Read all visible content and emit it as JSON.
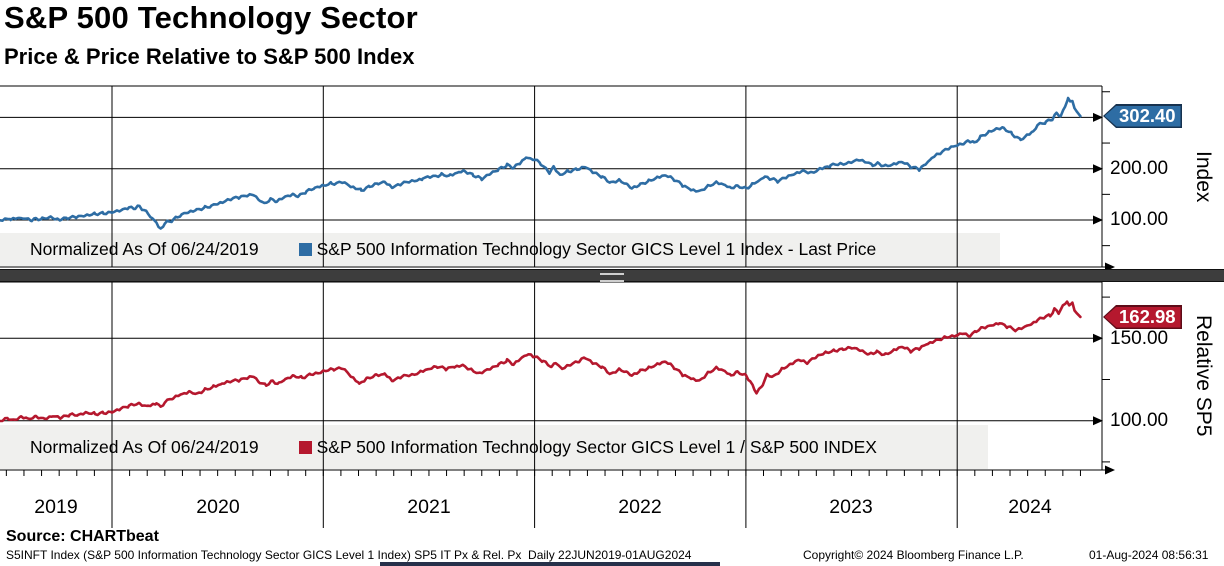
{
  "header": {
    "title": "S&P 500 Technology Sector",
    "subtitle": "Price & Price Relative to S&P 500 Index"
  },
  "panels": {
    "price": {
      "legend_prefix": "Normalized As Of 06/24/2019",
      "legend_series": "S&P 500 Information Technology Sector GICS Level 1 Index - Last Price",
      "last_value": "302.40",
      "axis_title": "Index",
      "tick_200": "200.00",
      "tick_100": "100.00"
    },
    "relative": {
      "legend_prefix": "Normalized As Of 06/24/2019",
      "legend_series": "S&P 500 Information Technology Sector GICS Level 1 / S&P 500 INDEX",
      "last_value": "162.98",
      "axis_title": "Relative SP5",
      "tick_150": "150.00",
      "tick_100": "100.00"
    }
  },
  "x_axis": {
    "labels": [
      "2019",
      "2020",
      "2021",
      "2022",
      "2023",
      "2024"
    ],
    "gridline_years": [
      2020,
      2021,
      2022,
      2023,
      2024
    ],
    "range": [
      "22JUN2019",
      "01AUG2024"
    ]
  },
  "footer": {
    "source": "Source: CHARTbeat",
    "description": "S5INFT Index (S&P 500 Information Technology Sector GICS Level 1 Index) SP5 IT Px & Rel. Px  Daily 22JUN2019-01AUG2024",
    "copyright": "Copyright© 2024 Bloomberg Finance L.P.",
    "timestamp": "01-Aug-2024 08:56:31"
  },
  "colors": {
    "price_line": "#2e6da4",
    "price_flag_fill": "#2e6da4",
    "price_flag_border": "#17324f",
    "relative_line": "#b5182e",
    "relative_flag_fill": "#b5182e",
    "relative_flag_border": "#5e0c18",
    "grid": "#000000",
    "legend_band": "#f0f0ee"
  },
  "chart_data": [
    {
      "type": "line",
      "name": "S&P 500 Information Technology Sector GICS Level 1 Index - Last Price",
      "normalized_as_of": "06/24/2019",
      "last": 302.4,
      "gridline_values": [
        100,
        200,
        300
      ],
      "minor_tick_values": [
        50,
        150,
        250,
        350
      ],
      "ylim": [
        20,
        360
      ],
      "points": [
        [
          2019.47,
          100
        ],
        [
          2019.52,
          102
        ],
        [
          2019.56,
          104.5
        ],
        [
          2019.58,
          103
        ],
        [
          2019.62,
          99.5
        ],
        [
          2019.64,
          102.5
        ],
        [
          2019.67,
          101
        ],
        [
          2019.71,
          104
        ],
        [
          2019.73,
          102.5
        ],
        [
          2019.76,
          101.5
        ],
        [
          2019.79,
          104.5
        ],
        [
          2019.83,
          107
        ],
        [
          2019.87,
          109
        ],
        [
          2019.92,
          112
        ],
        [
          2019.96,
          114
        ],
        [
          2020.0,
          116.5
        ],
        [
          2020.05,
          121
        ],
        [
          2020.08,
          124
        ],
        [
          2020.11,
          122
        ],
        [
          2020.13,
          126.8
        ],
        [
          2020.15,
          120
        ],
        [
          2020.17,
          112
        ],
        [
          2020.19,
          104
        ],
        [
          2020.21,
          95
        ],
        [
          2020.22,
          87
        ],
        [
          2020.23,
          83.5
        ],
        [
          2020.25,
          93
        ],
        [
          2020.27,
          97
        ],
        [
          2020.29,
          101
        ],
        [
          2020.31,
          105
        ],
        [
          2020.33,
          111
        ],
        [
          2020.36,
          116
        ],
        [
          2020.4,
          121
        ],
        [
          2020.44,
          125
        ],
        [
          2020.47,
          127
        ],
        [
          2020.5,
          133
        ],
        [
          2020.55,
          139
        ],
        [
          2020.6,
          144
        ],
        [
          2020.64,
          148
        ],
        [
          2020.67,
          151
        ],
        [
          2020.7,
          138
        ],
        [
          2020.72,
          132
        ],
        [
          2020.75,
          140
        ],
        [
          2020.78,
          136
        ],
        [
          2020.82,
          145
        ],
        [
          2020.86,
          149
        ],
        [
          2020.88,
          146
        ],
        [
          2020.92,
          155
        ],
        [
          2020.96,
          161
        ],
        [
          2021.0,
          166
        ],
        [
          2021.04,
          171
        ],
        [
          2021.09,
          174
        ],
        [
          2021.13,
          165
        ],
        [
          2021.18,
          157
        ],
        [
          2021.22,
          166
        ],
        [
          2021.26,
          172
        ],
        [
          2021.29,
          174
        ],
        [
          2021.33,
          163
        ],
        [
          2021.37,
          170
        ],
        [
          2021.42,
          175
        ],
        [
          2021.47,
          181
        ],
        [
          2021.52,
          186
        ],
        [
          2021.56,
          189
        ],
        [
          2021.6,
          186
        ],
        [
          2021.64,
          192
        ],
        [
          2021.67,
          194
        ],
        [
          2021.71,
          187
        ],
        [
          2021.75,
          181
        ],
        [
          2021.79,
          192
        ],
        [
          2021.83,
          200
        ],
        [
          2021.87,
          207
        ],
        [
          2021.9,
          201
        ],
        [
          2021.93,
          212
        ],
        [
          2021.96,
          223
        ],
        [
          2021.98,
          219
        ],
        [
          2022.0,
          218
        ],
        [
          2022.03,
          210
        ],
        [
          2022.07,
          193
        ],
        [
          2022.09,
          203
        ],
        [
          2022.12,
          187
        ],
        [
          2022.16,
          195
        ],
        [
          2022.2,
          200
        ],
        [
          2022.24,
          205
        ],
        [
          2022.28,
          193
        ],
        [
          2022.32,
          184
        ],
        [
          2022.36,
          172
        ],
        [
          2022.4,
          177
        ],
        [
          2022.44,
          168
        ],
        [
          2022.46,
          162
        ],
        [
          2022.5,
          170
        ],
        [
          2022.54,
          176
        ],
        [
          2022.58,
          182
        ],
        [
          2022.62,
          186
        ],
        [
          2022.66,
          178
        ],
        [
          2022.7,
          168
        ],
        [
          2022.74,
          160
        ],
        [
          2022.78,
          157
        ],
        [
          2022.82,
          166
        ],
        [
          2022.86,
          173
        ],
        [
          2022.9,
          168
        ],
        [
          2022.93,
          161
        ],
        [
          2022.96,
          166
        ],
        [
          2023.0,
          162
        ],
        [
          2023.03,
          168
        ],
        [
          2023.06,
          175
        ],
        [
          2023.09,
          185
        ],
        [
          2023.12,
          180
        ],
        [
          2023.15,
          176
        ],
        [
          2023.19,
          184
        ],
        [
          2023.23,
          190
        ],
        [
          2023.27,
          196
        ],
        [
          2023.31,
          192
        ],
        [
          2023.35,
          200
        ],
        [
          2023.4,
          207
        ],
        [
          2023.45,
          210
        ],
        [
          2023.5,
          214
        ],
        [
          2023.54,
          218
        ],
        [
          2023.57,
          212
        ],
        [
          2023.6,
          206
        ],
        [
          2023.63,
          210
        ],
        [
          2023.66,
          205
        ],
        [
          2023.7,
          208
        ],
        [
          2023.74,
          212
        ],
        [
          2023.78,
          203
        ],
        [
          2023.82,
          199
        ],
        [
          2023.85,
          210
        ],
        [
          2023.88,
          220
        ],
        [
          2023.92,
          230
        ],
        [
          2023.96,
          240
        ],
        [
          2024.0,
          246
        ],
        [
          2024.03,
          250
        ],
        [
          2024.05,
          254
        ],
        [
          2024.08,
          250
        ],
        [
          2024.11,
          261
        ],
        [
          2024.15,
          270
        ],
        [
          2024.19,
          277
        ],
        [
          2024.22,
          279
        ],
        [
          2024.26,
          268
        ],
        [
          2024.3,
          258
        ],
        [
          2024.33,
          265
        ],
        [
          2024.36,
          272
        ],
        [
          2024.38,
          285
        ],
        [
          2024.42,
          290
        ],
        [
          2024.45,
          296
        ],
        [
          2024.47,
          308
        ],
        [
          2024.49,
          303
        ],
        [
          2024.51,
          320
        ],
        [
          2024.525,
          337
        ],
        [
          2024.535,
          329
        ],
        [
          2024.545,
          333
        ],
        [
          2024.555,
          320
        ],
        [
          2024.565,
          311
        ],
        [
          2024.575,
          305
        ],
        [
          2024.583,
          302.4
        ]
      ]
    },
    {
      "type": "line",
      "name": "S&P 500 Information Technology Sector GICS Level 1 / S&P 500 INDEX",
      "normalized_as_of": "06/24/2019",
      "last": 162.98,
      "gridline_values": [
        100,
        150
      ],
      "minor_tick_values": [
        75,
        125,
        175
      ],
      "ylim": [
        70,
        185
      ],
      "points": [
        [
          2019.47,
          100
        ],
        [
          2019.51,
          101.5
        ],
        [
          2019.54,
          100.2
        ],
        [
          2019.57,
          102
        ],
        [
          2019.6,
          101
        ],
        [
          2019.64,
          102.5
        ],
        [
          2019.68,
          101.2
        ],
        [
          2019.72,
          103
        ],
        [
          2019.76,
          102
        ],
        [
          2019.8,
          103.5
        ],
        [
          2019.84,
          103
        ],
        [
          2019.88,
          104.5
        ],
        [
          2019.92,
          104
        ],
        [
          2019.96,
          105
        ],
        [
          2020.0,
          105.7
        ],
        [
          2020.04,
          107.5
        ],
        [
          2020.08,
          109
        ],
        [
          2020.13,
          110.5
        ],
        [
          2020.17,
          109
        ],
        [
          2020.21,
          110.5
        ],
        [
          2020.23,
          108.5
        ],
        [
          2020.25,
          111
        ],
        [
          2020.29,
          113.5
        ],
        [
          2020.33,
          116
        ],
        [
          2020.37,
          117.5
        ],
        [
          2020.4,
          116.5
        ],
        [
          2020.44,
          119
        ],
        [
          2020.48,
          120.5
        ],
        [
          2020.52,
          122
        ],
        [
          2020.56,
          123.5
        ],
        [
          2020.6,
          124.5
        ],
        [
          2020.64,
          126
        ],
        [
          2020.67,
          127.5
        ],
        [
          2020.7,
          123
        ],
        [
          2020.73,
          121.5
        ],
        [
          2020.76,
          124
        ],
        [
          2020.79,
          122
        ],
        [
          2020.82,
          125
        ],
        [
          2020.86,
          127
        ],
        [
          2020.9,
          126
        ],
        [
          2020.94,
          128.5
        ],
        [
          2021.0,
          130
        ],
        [
          2021.05,
          131
        ],
        [
          2021.09,
          132
        ],
        [
          2021.13,
          127
        ],
        [
          2021.17,
          122.5
        ],
        [
          2021.21,
          126
        ],
        [
          2021.25,
          128
        ],
        [
          2021.29,
          128.5
        ],
        [
          2021.33,
          124
        ],
        [
          2021.37,
          126.5
        ],
        [
          2021.42,
          127.5
        ],
        [
          2021.46,
          129.5
        ],
        [
          2021.5,
          131
        ],
        [
          2021.54,
          132.5
        ],
        [
          2021.58,
          131.5
        ],
        [
          2021.62,
          133
        ],
        [
          2021.66,
          134
        ],
        [
          2021.7,
          131
        ],
        [
          2021.74,
          128.5
        ],
        [
          2021.79,
          132
        ],
        [
          2021.83,
          134.5
        ],
        [
          2021.87,
          136.5
        ],
        [
          2021.9,
          134
        ],
        [
          2021.94,
          138
        ],
        [
          2021.97,
          140.5
        ],
        [
          2022.0,
          139
        ],
        [
          2022.04,
          136
        ],
        [
          2022.08,
          132
        ],
        [
          2022.1,
          135.5
        ],
        [
          2022.13,
          131.5
        ],
        [
          2022.17,
          134
        ],
        [
          2022.21,
          136
        ],
        [
          2022.24,
          138.5
        ],
        [
          2022.28,
          135
        ],
        [
          2022.32,
          132.5
        ],
        [
          2022.36,
          128
        ],
        [
          2022.4,
          131
        ],
        [
          2022.44,
          129
        ],
        [
          2022.46,
          127.5
        ],
        [
          2022.5,
          130.5
        ],
        [
          2022.54,
          132
        ],
        [
          2022.58,
          134
        ],
        [
          2022.62,
          135.5
        ],
        [
          2022.66,
          132
        ],
        [
          2022.7,
          128
        ],
        [
          2022.74,
          126
        ],
        [
          2022.78,
          124.5
        ],
        [
          2022.82,
          129
        ],
        [
          2022.86,
          132
        ],
        [
          2022.9,
          130
        ],
        [
          2022.93,
          127
        ],
        [
          2022.96,
          129.5
        ],
        [
          2023.0,
          127.5
        ],
        [
          2023.02,
          124
        ],
        [
          2023.04,
          119
        ],
        [
          2023.05,
          117.5
        ],
        [
          2023.08,
          122
        ],
        [
          2023.1,
          128
        ],
        [
          2023.13,
          126.5
        ],
        [
          2023.17,
          131
        ],
        [
          2023.21,
          134
        ],
        [
          2023.25,
          137
        ],
        [
          2023.29,
          135
        ],
        [
          2023.33,
          138.5
        ],
        [
          2023.38,
          141
        ],
        [
          2023.42,
          142.5
        ],
        [
          2023.46,
          143.5
        ],
        [
          2023.5,
          144.5
        ],
        [
          2023.54,
          143
        ],
        [
          2023.58,
          140.5
        ],
        [
          2023.62,
          142
        ],
        [
          2023.66,
          140
        ],
        [
          2023.7,
          142.5
        ],
        [
          2023.74,
          144.5
        ],
        [
          2023.78,
          142
        ],
        [
          2023.82,
          144
        ],
        [
          2023.86,
          147
        ],
        [
          2023.9,
          149
        ],
        [
          2023.94,
          150.5
        ],
        [
          2024.0,
          152
        ],
        [
          2024.03,
          153.5
        ],
        [
          2024.06,
          151.5
        ],
        [
          2024.09,
          154.5
        ],
        [
          2024.12,
          156.5
        ],
        [
          2024.16,
          158
        ],
        [
          2024.2,
          159.5
        ],
        [
          2024.24,
          157
        ],
        [
          2024.28,
          154.5
        ],
        [
          2024.32,
          156.5
        ],
        [
          2024.35,
          158.5
        ],
        [
          2024.38,
          161
        ],
        [
          2024.41,
          162.5
        ],
        [
          2024.44,
          164
        ],
        [
          2024.46,
          167.5
        ],
        [
          2024.48,
          165.5
        ],
        [
          2024.5,
          169.5
        ],
        [
          2024.52,
          172.5
        ],
        [
          2024.53,
          170
        ],
        [
          2024.545,
          172
        ],
        [
          2024.555,
          167.5
        ],
        [
          2024.565,
          165
        ],
        [
          2024.575,
          163.5
        ],
        [
          2024.583,
          162.98
        ]
      ]
    }
  ]
}
